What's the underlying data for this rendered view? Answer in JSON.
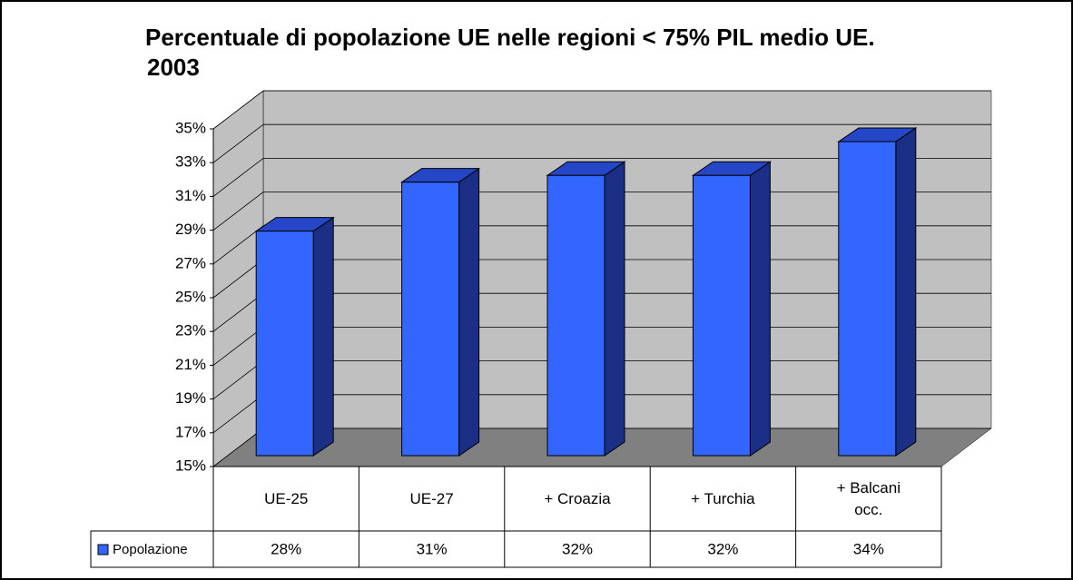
{
  "chart_data": {
    "type": "bar3d",
    "title": [
      "Percentuale di popolazione UE nelle regioni < 75% PIL medio UE.",
      "2003"
    ],
    "categories": [
      "UE-25",
      "UE-27",
      "+ Croazia",
      "+ Turchia",
      "+ Balcani occ."
    ],
    "series": [
      {
        "name": "Popolazione",
        "color": "#3366ff",
        "values": [
          28.3,
          31.2,
          31.6,
          31.6,
          33.6
        ],
        "value_labels": [
          "28%",
          "31%",
          "32%",
          "32%",
          "34%"
        ]
      }
    ],
    "ylim": [
      15,
      35
    ],
    "yticks": [
      {
        "value": 15,
        "label": "15%"
      },
      {
        "value": 17,
        "label": "17%"
      },
      {
        "value": 19,
        "label": "19%"
      },
      {
        "value": 21,
        "label": "21%"
      },
      {
        "value": 23,
        "label": "23%"
      },
      {
        "value": 25,
        "label": "25%"
      },
      {
        "value": 27,
        "label": "27%"
      },
      {
        "value": 29,
        "label": "29%"
      },
      {
        "value": 31,
        "label": "31%"
      },
      {
        "value": 33,
        "label": "33%"
      },
      {
        "value": 35,
        "label": "35%"
      }
    ],
    "grid": true
  }
}
